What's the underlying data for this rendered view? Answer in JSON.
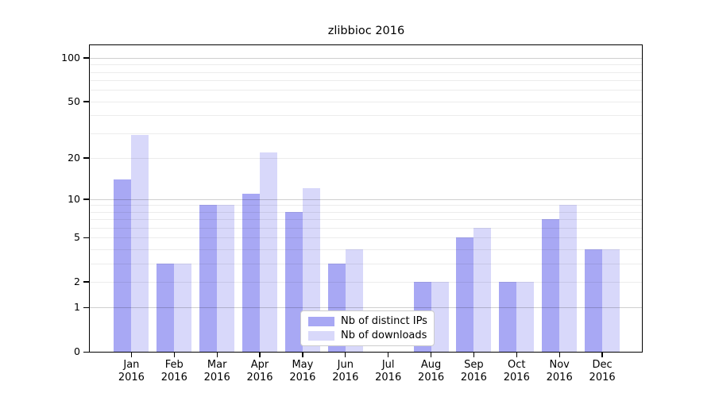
{
  "title": "zlibbioc 2016",
  "legend": {
    "entries": [
      {
        "label": "Nb of distinct IPs",
        "color": "#a8a8f4"
      },
      {
        "label": "Nb of downloads",
        "color": "#d8d8fa"
      }
    ]
  },
  "y_axis": {
    "tick_labels": [
      "0",
      "1",
      "2",
      "5",
      "10",
      "20",
      "50",
      "100"
    ],
    "tick_values": [
      0,
      1,
      2,
      5,
      10,
      20,
      50,
      100
    ],
    "minor_gridline_values": [
      2,
      3,
      4,
      5,
      6,
      7,
      8,
      9,
      20,
      30,
      40,
      50,
      60,
      70,
      80,
      90
    ],
    "major_gridline_values": [
      1,
      10,
      100
    ]
  },
  "x_axis": {
    "year": "2016",
    "months": [
      "Jan",
      "Feb",
      "Mar",
      "Apr",
      "May",
      "Jun",
      "Jul",
      "Aug",
      "Sep",
      "Oct",
      "Nov",
      "Dec"
    ]
  },
  "chart_data": {
    "type": "bar",
    "title": "zlibbioc 2016",
    "categories": [
      "Jan 2016",
      "Feb 2016",
      "Mar 2016",
      "Apr 2016",
      "May 2016",
      "Jun 2016",
      "Jul 2016",
      "Aug 2016",
      "Sep 2016",
      "Oct 2016",
      "Nov 2016",
      "Dec 2016"
    ],
    "series": [
      {
        "name": "Nb of distinct IPs",
        "color": "#a8a8f4",
        "values": [
          14,
          3,
          9,
          11,
          8,
          3,
          0,
          2,
          5,
          2,
          7,
          4
        ]
      },
      {
        "name": "Nb of downloads",
        "color": "#d8d8fa",
        "values": [
          29,
          3,
          9,
          22,
          12,
          4,
          0,
          2,
          6,
          2,
          9,
          4
        ]
      }
    ],
    "xlabel": "",
    "ylabel": "",
    "yscale": "log1p",
    "yticks": [
      0,
      1,
      2,
      5,
      10,
      20,
      50,
      100
    ],
    "ylim": [
      0,
      122
    ],
    "grid": "horizontal major at 1/10/100 and minor at log-decade steps, drawn over bars",
    "legend_position": "inside lower center"
  }
}
